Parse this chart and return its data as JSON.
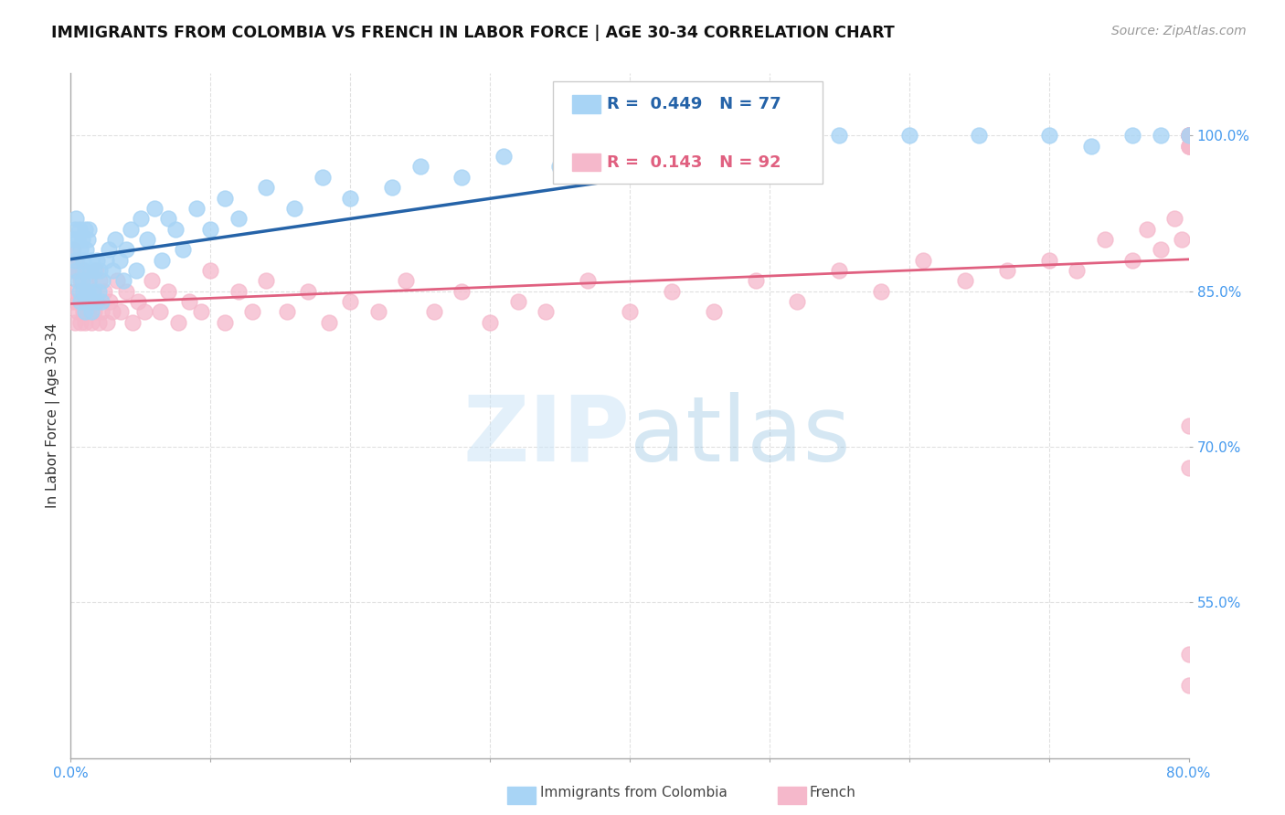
{
  "title": "IMMIGRANTS FROM COLOMBIA VS FRENCH IN LABOR FORCE | AGE 30-34 CORRELATION CHART",
  "source": "Source: ZipAtlas.com",
  "ylabel": "In Labor Force | Age 30-34",
  "xlim": [
    0.0,
    0.8
  ],
  "ylim": [
    0.4,
    1.06
  ],
  "ytick_labels": [
    "55.0%",
    "70.0%",
    "85.0%",
    "100.0%"
  ],
  "ytick_values": [
    0.55,
    0.7,
    0.85,
    1.0
  ],
  "colombia_color": "#a8d4f5",
  "french_color": "#f5b8cb",
  "colombia_line_color": "#2563a8",
  "french_line_color": "#e06080",
  "colombia_R": 0.449,
  "colombia_N": 77,
  "french_R": 0.143,
  "french_N": 92,
  "background_color": "#ffffff",
  "grid_color": "#e0e0e0",
  "axis_label_color": "#4499ee",
  "title_color": "#111111",
  "colombia_x": [
    0.001,
    0.002,
    0.003,
    0.003,
    0.004,
    0.004,
    0.005,
    0.005,
    0.006,
    0.006,
    0.007,
    0.007,
    0.008,
    0.008,
    0.009,
    0.009,
    0.01,
    0.01,
    0.01,
    0.011,
    0.011,
    0.012,
    0.012,
    0.013,
    0.013,
    0.014,
    0.015,
    0.015,
    0.016,
    0.017,
    0.018,
    0.019,
    0.02,
    0.021,
    0.022,
    0.023,
    0.025,
    0.027,
    0.03,
    0.032,
    0.035,
    0.038,
    0.04,
    0.043,
    0.047,
    0.05,
    0.055,
    0.06,
    0.065,
    0.07,
    0.075,
    0.08,
    0.09,
    0.1,
    0.11,
    0.12,
    0.14,
    0.16,
    0.18,
    0.2,
    0.23,
    0.25,
    0.28,
    0.31,
    0.35,
    0.38,
    0.42,
    0.46,
    0.5,
    0.55,
    0.6,
    0.65,
    0.7,
    0.73,
    0.76,
    0.78,
    0.8
  ],
  "colombia_y": [
    0.89,
    0.9,
    0.88,
    0.91,
    0.87,
    0.92,
    0.86,
    0.9,
    0.85,
    0.91,
    0.84,
    0.89,
    0.86,
    0.9,
    0.85,
    0.88,
    0.83,
    0.87,
    0.91,
    0.84,
    0.89,
    0.85,
    0.9,
    0.86,
    0.91,
    0.87,
    0.83,
    0.88,
    0.85,
    0.87,
    0.84,
    0.88,
    0.85,
    0.87,
    0.84,
    0.86,
    0.88,
    0.89,
    0.87,
    0.9,
    0.88,
    0.86,
    0.89,
    0.91,
    0.87,
    0.92,
    0.9,
    0.93,
    0.88,
    0.92,
    0.91,
    0.89,
    0.93,
    0.91,
    0.94,
    0.92,
    0.95,
    0.93,
    0.96,
    0.94,
    0.95,
    0.97,
    0.96,
    0.98,
    0.97,
    0.99,
    0.98,
    1.0,
    0.99,
    1.0,
    1.0,
    1.0,
    1.0,
    0.99,
    1.0,
    1.0,
    1.0
  ],
  "french_x": [
    0.001,
    0.002,
    0.002,
    0.003,
    0.004,
    0.004,
    0.005,
    0.005,
    0.006,
    0.007,
    0.007,
    0.008,
    0.009,
    0.009,
    0.01,
    0.011,
    0.012,
    0.013,
    0.014,
    0.015,
    0.016,
    0.017,
    0.018,
    0.019,
    0.02,
    0.021,
    0.022,
    0.024,
    0.026,
    0.028,
    0.03,
    0.033,
    0.036,
    0.04,
    0.044,
    0.048,
    0.053,
    0.058,
    0.064,
    0.07,
    0.077,
    0.085,
    0.093,
    0.1,
    0.11,
    0.12,
    0.13,
    0.14,
    0.155,
    0.17,
    0.185,
    0.2,
    0.22,
    0.24,
    0.26,
    0.28,
    0.3,
    0.32,
    0.34,
    0.37,
    0.4,
    0.43,
    0.46,
    0.49,
    0.52,
    0.55,
    0.58,
    0.61,
    0.64,
    0.67,
    0.7,
    0.72,
    0.74,
    0.76,
    0.77,
    0.78,
    0.79,
    0.795,
    0.8,
    0.8,
    0.8,
    0.8,
    0.8,
    0.8,
    0.8,
    0.8,
    0.8,
    0.8,
    0.8,
    0.8,
    0.8,
    0.8
  ],
  "french_y": [
    0.87,
    0.84,
    0.89,
    0.82,
    0.88,
    0.85,
    0.83,
    0.87,
    0.84,
    0.82,
    0.86,
    0.84,
    0.83,
    0.87,
    0.82,
    0.85,
    0.83,
    0.86,
    0.84,
    0.82,
    0.85,
    0.83,
    0.87,
    0.84,
    0.82,
    0.86,
    0.83,
    0.85,
    0.82,
    0.84,
    0.83,
    0.86,
    0.83,
    0.85,
    0.82,
    0.84,
    0.83,
    0.86,
    0.83,
    0.85,
    0.82,
    0.84,
    0.83,
    0.87,
    0.82,
    0.85,
    0.83,
    0.86,
    0.83,
    0.85,
    0.82,
    0.84,
    0.83,
    0.86,
    0.83,
    0.85,
    0.82,
    0.84,
    0.83,
    0.86,
    0.83,
    0.85,
    0.83,
    0.86,
    0.84,
    0.87,
    0.85,
    0.88,
    0.86,
    0.87,
    0.88,
    0.87,
    0.9,
    0.88,
    0.91,
    0.89,
    0.92,
    0.9,
    1.0,
    1.0,
    1.0,
    0.99,
    1.0,
    0.99,
    1.0,
    1.0,
    0.99,
    1.0,
    0.68,
    0.72,
    0.47,
    0.5
  ]
}
